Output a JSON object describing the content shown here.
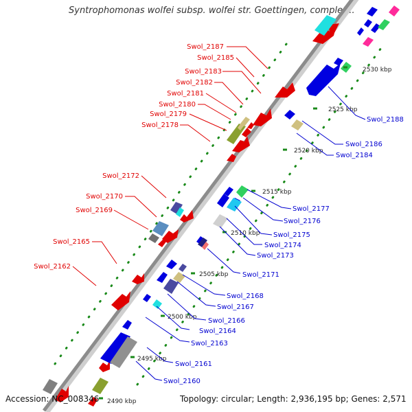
{
  "header": {
    "title": "Syntrophomonas wolfei subsp. wolfei str. Goettingen, complet..."
  },
  "footer": {
    "accession": "Accession: NC_008346",
    "summary": "Topology: circular; Length: 2,936,195 bp; Genes: 2,571"
  },
  "colors": {
    "forward_label": "#e00000",
    "reverse_label": "#0000d0",
    "backbone": "#8c8c8c",
    "tick": "#1a8a1a"
  },
  "ruler": [
    {
      "label": "2490 kbp"
    },
    {
      "label": "2495 kbp"
    },
    {
      "label": "2500 kbp"
    },
    {
      "label": "2505 kbp"
    },
    {
      "label": "2510 kbp"
    },
    {
      "label": "2515 kbp"
    },
    {
      "label": "2520 kbp"
    },
    {
      "label": "2525 kbp"
    },
    {
      "label": "2530 kbp"
    }
  ],
  "forward_genes": [
    {
      "label": "Swol_2187"
    },
    {
      "label": "Swol_2185"
    },
    {
      "label": "Swol_2183"
    },
    {
      "label": "Swol_2182"
    },
    {
      "label": "Swol_2181"
    },
    {
      "label": "Swol_2180"
    },
    {
      "label": "Swol_2179"
    },
    {
      "label": "Swol_2178"
    },
    {
      "label": "Swol_2172"
    },
    {
      "label": "Swol_2170"
    },
    {
      "label": "Swol_2169"
    },
    {
      "label": "Swol_2165"
    },
    {
      "label": "Swol_2162"
    }
  ],
  "reverse_genes": [
    {
      "label": "Swol_2188"
    },
    {
      "label": "Swol_2186"
    },
    {
      "label": "Swol_2184"
    },
    {
      "label": "Swol_2177"
    },
    {
      "label": "Swol_2176"
    },
    {
      "label": "Swol_2175"
    },
    {
      "label": "Swol_2174"
    },
    {
      "label": "Swol_2173"
    },
    {
      "label": "Swol_2171"
    },
    {
      "label": "Swol_2168"
    },
    {
      "label": "Swol_2167"
    },
    {
      "label": "Swol_2166"
    },
    {
      "label": "Swol_2164"
    },
    {
      "label": "Swol_2163"
    },
    {
      "label": "Swol_2161"
    },
    {
      "label": "Swol_2160"
    }
  ]
}
